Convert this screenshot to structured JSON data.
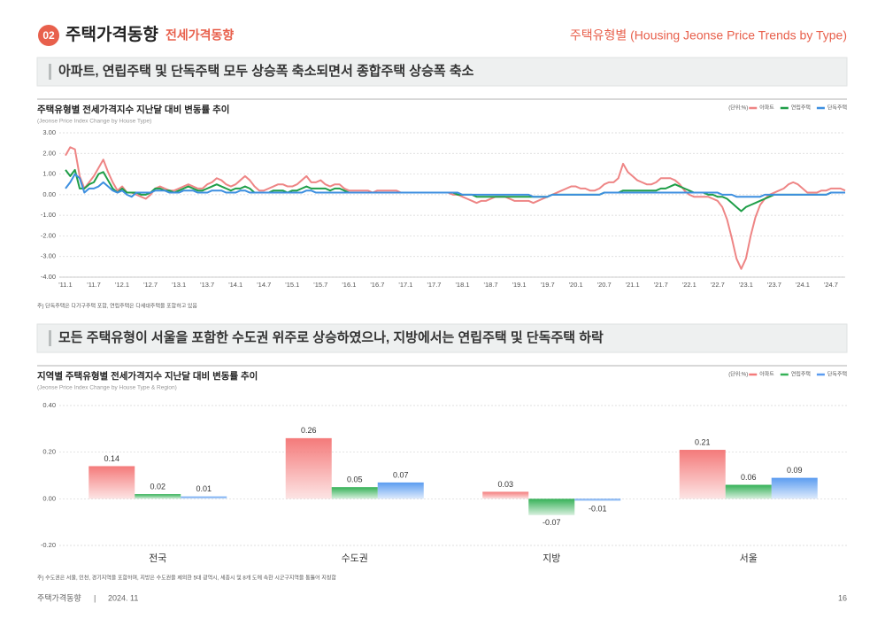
{
  "header": {
    "number": "02",
    "title": "주택가격동향",
    "subtitle": "전세가격동향",
    "right_title": "주택유형별 (Housing Jeonse Price Trends by Type)"
  },
  "headings": [
    "아파트, 연립주택 및 단독주택 모두 상승폭 축소되면서 종합주택 상승폭 축소",
    "모든 주택유형이 서울을 포함한 수도권 위주로 상승하였으나, 지방에서는 연립주택 및 단독주택 하락"
  ],
  "chart_data": [
    {
      "type": "line",
      "title": "주택유형별 전세가격지수 지난달 대비 변동률 추이",
      "subtitle": "(Jeonse Price Index Change by House Type)",
      "unit": "(단위:%)",
      "legend": "top-right",
      "grid": true,
      "note": "주) 단독주택은 다가구주택 포함, 연립주택은 다세대주택을 포함하고 있음",
      "categories": [
        "'11.1",
        null,
        null,
        null,
        null,
        null,
        "'11.7",
        null,
        null,
        null,
        null,
        null,
        "'12.1",
        null,
        null,
        null,
        null,
        null,
        "'12.7",
        null,
        null,
        null,
        null,
        null,
        "'13.1",
        null,
        null,
        null,
        null,
        null,
        "'13.7",
        null,
        null,
        null,
        null,
        null,
        "'14.1",
        null,
        null,
        null,
        null,
        null,
        "'14.7",
        null,
        null,
        null,
        null,
        null,
        "'15.1",
        null,
        null,
        null,
        null,
        null,
        "'15.7",
        null,
        null,
        null,
        null,
        null,
        "'16.1",
        null,
        null,
        null,
        null,
        null,
        "'16.7",
        null,
        null,
        null,
        null,
        null,
        "'17.1",
        null,
        null,
        null,
        null,
        null,
        "'17.7",
        null,
        null,
        null,
        null,
        null,
        "'18.1",
        null,
        null,
        null,
        null,
        null,
        "'18.7",
        null,
        null,
        null,
        null,
        null,
        "'19.1",
        null,
        null,
        null,
        null,
        null,
        "'19.7",
        null,
        null,
        null,
        null,
        null,
        "'20.1",
        null,
        null,
        null,
        null,
        null,
        "'20.7",
        null,
        null,
        null,
        null,
        null,
        "'21.1",
        null,
        null,
        null,
        null,
        null,
        "'21.7",
        null,
        null,
        null,
        null,
        null,
        "'22.1",
        null,
        null,
        null,
        null,
        null,
        "'22.7",
        null,
        null,
        null,
        null,
        null,
        "'23.1",
        null,
        null,
        null,
        null,
        null,
        "'23.7",
        null,
        null,
        null,
        null,
        null,
        "'24.1",
        null,
        null,
        null,
        null,
        null,
        "'24.7",
        null,
        null,
        null
      ],
      "series": [
        {
          "name": "아파트",
          "color": "#ee8585",
          "values": [
            1.9,
            2.3,
            2.2,
            0.9,
            0.3,
            0.6,
            0.9,
            1.3,
            1.7,
            1.1,
            0.6,
            0.2,
            0.4,
            0.1,
            0.1,
            0,
            -0.1,
            -0.2,
            0,
            0.3,
            0.4,
            0.3,
            0.2,
            0.2,
            0.3,
            0.4,
            0.5,
            0.4,
            0.3,
            0.3,
            0.5,
            0.6,
            0.8,
            0.7,
            0.5,
            0.4,
            0.5,
            0.7,
            0.9,
            0.7,
            0.4,
            0.2,
            0.2,
            0.3,
            0.4,
            0.5,
            0.5,
            0.4,
            0.4,
            0.5,
            0.7,
            0.9,
            0.6,
            0.6,
            0.7,
            0.5,
            0.4,
            0.5,
            0.5,
            0.3,
            0.2,
            0.2,
            0.2,
            0.2,
            0.2,
            0.1,
            0.2,
            0.2,
            0.2,
            0.2,
            0.2,
            0.1,
            0.1,
            0.1,
            0.1,
            0.1,
            0.1,
            0.1,
            0.1,
            0.1,
            0.1,
            0.1,
            0,
            0,
            -0.1,
            -0.2,
            -0.3,
            -0.4,
            -0.3,
            -0.3,
            -0.2,
            -0.1,
            -0.1,
            -0.1,
            -0.2,
            -0.3,
            -0.3,
            -0.3,
            -0.3,
            -0.4,
            -0.3,
            -0.2,
            -0.1,
            0,
            0.1,
            0.2,
            0.3,
            0.4,
            0.4,
            0.3,
            0.3,
            0.2,
            0.2,
            0.3,
            0.5,
            0.6,
            0.6,
            0.8,
            1.5,
            1.1,
            0.9,
            0.7,
            0.6,
            0.5,
            0.5,
            0.6,
            0.8,
            0.8,
            0.8,
            0.7,
            0.5,
            0.2,
            0,
            -0.1,
            -0.1,
            -0.1,
            -0.1,
            -0.2,
            -0.3,
            -0.6,
            -1.2,
            -2.1,
            -3.1,
            -3.6,
            -3.1,
            -2.0,
            -1.1,
            -0.5,
            -0.2,
            0,
            0.1,
            0.2,
            0.3,
            0.5,
            0.6,
            0.5,
            0.3,
            0.1,
            0.1,
            0.1,
            0.2,
            0.2,
            0.3,
            0.3,
            0.3,
            0.2
          ]
        },
        {
          "name": "연립주택",
          "color": "#1f9e48",
          "values": [
            1.2,
            0.9,
            1.2,
            0.3,
            0.3,
            0.5,
            0.6,
            1.0,
            1.1,
            0.7,
            0.3,
            0.1,
            0.3,
            0.1,
            0.1,
            0.1,
            0,
            0,
            0.1,
            0.3,
            0.3,
            0.2,
            0.2,
            0.1,
            0.2,
            0.3,
            0.4,
            0.3,
            0.2,
            0.2,
            0.3,
            0.4,
            0.5,
            0.4,
            0.3,
            0.2,
            0.3,
            0.3,
            0.4,
            0.3,
            0.1,
            0.1,
            0.1,
            0.1,
            0.2,
            0.2,
            0.2,
            0.1,
            0.2,
            0.2,
            0.3,
            0.4,
            0.3,
            0.3,
            0.3,
            0.3,
            0.2,
            0.3,
            0.3,
            0.2,
            0.1,
            0.1,
            0.1,
            0.1,
            0.1,
            0.1,
            0.1,
            0.1,
            0.1,
            0.1,
            0.1,
            0.1,
            0.1,
            0.1,
            0.1,
            0.1,
            0.1,
            0.1,
            0.1,
            0.1,
            0.1,
            0.1,
            0.1,
            0,
            0,
            0,
            0,
            -0.1,
            -0.1,
            -0.1,
            -0.1,
            -0.1,
            -0.1,
            -0.1,
            -0.1,
            -0.1,
            -0.1,
            -0.1,
            -0.1,
            -0.1,
            -0.1,
            -0.1,
            -0.1,
            0,
            0,
            0,
            0,
            0,
            0,
            0,
            0,
            0,
            0,
            0,
            0.1,
            0.1,
            0.1,
            0.1,
            0.2,
            0.2,
            0.2,
            0.2,
            0.2,
            0.2,
            0.2,
            0.2,
            0.3,
            0.3,
            0.4,
            0.5,
            0.4,
            0.3,
            0.2,
            0.1,
            0.1,
            0.1,
            0,
            0,
            -0.1,
            -0.1,
            -0.2,
            -0.4,
            -0.6,
            -0.8,
            -0.6,
            -0.5,
            -0.4,
            -0.3,
            -0.2,
            -0.1,
            0,
            0,
            0,
            0,
            0,
            0,
            0,
            0,
            0,
            0,
            0,
            0,
            0.1,
            0.1,
            0.1,
            0.1
          ]
        },
        {
          "name": "단독주택",
          "color": "#3d8fe0",
          "values": [
            0.3,
            0.6,
            1.0,
            0.8,
            0.1,
            0.3,
            0.3,
            0.4,
            0.6,
            0.4,
            0.2,
            0.1,
            0.2,
            0,
            -0.1,
            0.1,
            0.1,
            0.1,
            0.1,
            0.2,
            0.2,
            0.2,
            0.1,
            0.1,
            0.1,
            0.2,
            0.2,
            0.2,
            0.1,
            0.1,
            0.1,
            0.2,
            0.2,
            0.2,
            0.1,
            0.1,
            0.1,
            0.2,
            0.2,
            0.1,
            0.1,
            0.1,
            0.1,
            0.1,
            0.1,
            0.1,
            0.1,
            0.1,
            0.1,
            0.1,
            0.1,
            0.2,
            0.2,
            0.1,
            0.1,
            0.1,
            0.1,
            0.1,
            0.1,
            0.1,
            0.1,
            0.1,
            0.1,
            0.1,
            0.1,
            0.1,
            0.1,
            0.1,
            0.1,
            0.1,
            0.1,
            0.1,
            0.1,
            0.1,
            0.1,
            0.1,
            0.1,
            0.1,
            0.1,
            0.1,
            0.1,
            0.1,
            0.1,
            0.1,
            0,
            0,
            0,
            0,
            0,
            0,
            0,
            0,
            0,
            0,
            0,
            0,
            0,
            0,
            0,
            -0.1,
            -0.1,
            -0.1,
            -0.1,
            0,
            0,
            0,
            0,
            0,
            0,
            0,
            0,
            0,
            0,
            0,
            0.1,
            0.1,
            0.1,
            0.1,
            0.1,
            0.1,
            0.1,
            0.1,
            0.1,
            0.1,
            0.1,
            0.1,
            0.1,
            0.1,
            0.1,
            0.1,
            0.1,
            0.1,
            0.1,
            0.1,
            0.1,
            0.1,
            0.1,
            0.1,
            0.1,
            0,
            0,
            0,
            -0.1,
            -0.1,
            -0.1,
            -0.1,
            -0.1,
            -0.1,
            0,
            0,
            0,
            0,
            0,
            0,
            0,
            0,
            0,
            0,
            0,
            0,
            0,
            0,
            0.1,
            0.1,
            0.1,
            0.1
          ]
        }
      ],
      "ylim": [
        -4,
        3
      ],
      "yticks": [
        {
          "value": 3,
          "label": "3.00"
        },
        {
          "value": 2,
          "label": "2.00"
        },
        {
          "value": 1,
          "label": "1.00"
        },
        {
          "value": 0,
          "label": "0.00"
        },
        {
          "value": -1,
          "label": "-1.00"
        },
        {
          "value": -2,
          "label": "-2.00"
        },
        {
          "value": -3,
          "label": "-3.00"
        },
        {
          "value": -4,
          "label": "-4.00"
        }
      ]
    },
    {
      "type": "bar",
      "title": "지역별 주택유형별 전세가격지수 지난달 대비 변동률 추이",
      "subtitle": "(Jeonse Price Index Change by House Type & Region)",
      "unit": "(단위:%)",
      "legend": "top-right",
      "grid": true,
      "note": "주) 수도권은 서울, 인천, 경기지역을 포함하며, 지방은 수도권을 제외한 5대 광역시, 세종시 및 8개 도에 속한 시군구지역을 통틀어 지칭함",
      "categories": [
        "전국",
        "수도권",
        "지방",
        "서울"
      ],
      "series": [
        {
          "name": "아파트",
          "color": "#f47a7a",
          "values": [
            0.14,
            0.26,
            0.03,
            0.21
          ]
        },
        {
          "name": "연립주택",
          "color": "#35b157",
          "values": [
            0.02,
            0.05,
            -0.07,
            0.06
          ]
        },
        {
          "name": "단독주택",
          "color": "#5b9cf0",
          "values": [
            0.01,
            0.07,
            -0.01,
            0.09
          ]
        }
      ],
      "ylim": [
        -0.2,
        0.4
      ],
      "yticks": [
        {
          "value": 0.4,
          "label": "0.40"
        },
        {
          "value": 0.2,
          "label": "0.20"
        },
        {
          "value": 0,
          "label": "0.00"
        },
        {
          "value": -0.2,
          "label": "-0.20"
        }
      ]
    }
  ],
  "footer": {
    "left": "주택가격동향",
    "separator": "|",
    "date": "2024. 11",
    "page": "16"
  }
}
